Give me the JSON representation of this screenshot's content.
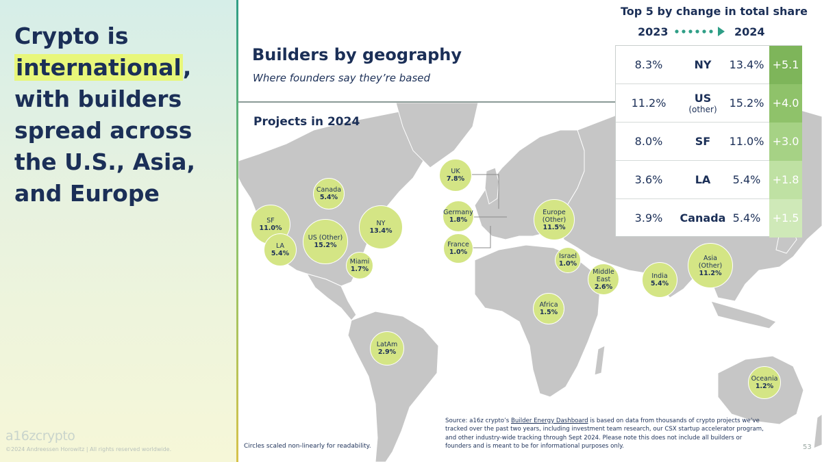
{
  "headline": {
    "line1": "Crypto is",
    "highlight": "international",
    "after_highlight": ",",
    "rest": "with builders spread across the U.S., Asia, and Europe"
  },
  "brand": {
    "logo": "a16zcrypto",
    "copyright": "©2024 Andreessen Horowitz  |  All rights reserved worldwide."
  },
  "header": {
    "title": "Builders by geography",
    "subtitle": "Where founders say they’re based"
  },
  "map": {
    "label": "Projects in 2024",
    "bubbles": [
      {
        "name": "UK",
        "value": "7.8%"
      },
      {
        "name": "Canada",
        "value": "5.4%"
      },
      {
        "name": "SF",
        "value": "11.0%"
      },
      {
        "name": "Germany",
        "value": "1.8%"
      },
      {
        "name": "Europe\n(Other)",
        "value": "11.5%"
      },
      {
        "name": "NY",
        "value": "13.4%"
      },
      {
        "name": "US (Other)",
        "value": "15.2%"
      },
      {
        "name": "LA",
        "value": "5.4%"
      },
      {
        "name": "France",
        "value": "1.0%"
      },
      {
        "name": "Miami",
        "value": "1.7%"
      },
      {
        "name": "Israel",
        "value": "1.0%"
      },
      {
        "name": "Asia\n(Other)",
        "value": "11.2%"
      },
      {
        "name": "Middle\nEast",
        "value": "2.6%"
      },
      {
        "name": "India",
        "value": "5.4%"
      },
      {
        "name": "Africa",
        "value": "1.5%"
      },
      {
        "name": "LatAm",
        "value": "2.9%"
      },
      {
        "name": "Oceania",
        "value": "1.2%"
      }
    ]
  },
  "top5": {
    "title": "Top 5 by change in total share",
    "year_from": "2023",
    "year_to": "2024",
    "rows": [
      {
        "v2023": "8.3%",
        "location": "NY",
        "location_sub": "",
        "v2024": "13.4%",
        "change": "+5.1"
      },
      {
        "v2023": "11.2%",
        "location": "US",
        "location_sub": "(other)",
        "v2024": "15.2%",
        "change": "+4.0"
      },
      {
        "v2023": "8.0%",
        "location": "SF",
        "location_sub": "",
        "v2024": "11.0%",
        "change": "+3.0"
      },
      {
        "v2023": "3.6%",
        "location": "LA",
        "location_sub": "",
        "v2024": "5.4%",
        "change": "+1.8"
      },
      {
        "v2023": "3.9%",
        "location": "Canada",
        "location_sub": "",
        "v2024": "5.4%",
        "change": "+1.5"
      }
    ]
  },
  "footer": {
    "scale_note": "Circles scaled non-linearly for readability.",
    "source_prefix": "Source: a16z crypto’s ",
    "source_link": "Builder Energy Dashboard",
    "source_suffix": " is based on data from thousands of crypto projects we’ve tracked over the past two years, including investment team research, our CSX startup accelerator program, and other industry-wide tracking through Sept 2024. Please note this does not include all builders or founders and is meant to be for informational purposes only.",
    "page_number": "53"
  },
  "colors": {
    "navy": "#1b2f57",
    "bubble": "#d4e585",
    "land": "#c6c6c6",
    "change_scale": [
      "#7eb55a",
      "#8fc26a",
      "#a6d285",
      "#bfe1a3",
      "#cfe9b8"
    ],
    "highlight": "#e8f77a"
  }
}
